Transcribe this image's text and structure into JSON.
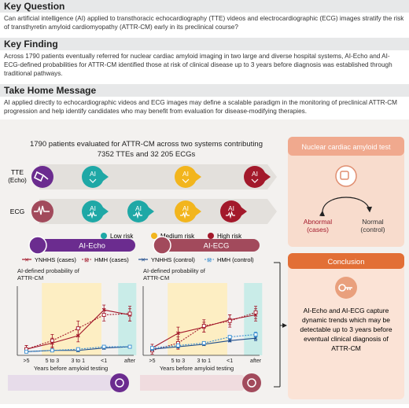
{
  "key_question": {
    "heading": "Key Question",
    "text": "Can artificial intelligence (AI) applied to transthoracic echocardiography (TTE) videos and electrocardiographic (ECG) images stratify the risk of transthyretin amyloid cardiomyopathy (ATTR-CM) early in its preclinical course?"
  },
  "key_finding": {
    "heading": "Key Finding",
    "text": "Across 1790 patients eventually referred for nuclear cardiac amyloid imaging in two large and diverse hospital systems, AI-Echo and AI-ECG-defined probabilities for ATTR-CM identified those at risk of clinical disease up to 3 years before diagnosis was established through traditional pathways."
  },
  "take_home": {
    "heading": "Take Home Message",
    "text": "AI applied directly to echocardiographic videos and ECG images may define a scalable paradigm in the monitoring of preclinical ATTR-CM progression and help identify candidates who may benefit from evaluation for disease-modifying therapies."
  },
  "diagram": {
    "cohort_line1": "1790 patients evaluated for ATTR-CM across two systems contributing",
    "cohort_line2": "7352 TTEs and 32 205 ECGs",
    "tte_label_1": "TTE",
    "tte_label_2": "(Echo)",
    "ecg_label": "ECG",
    "ai_label": "AI",
    "legend": {
      "low": "Low risk",
      "medium": "Medium risk",
      "high": "High risk"
    },
    "nuclear_title": "Nuclear cardiac amyloid test",
    "abnormal_1": "Abnormal",
    "abnormal_2": "(cases)",
    "normal_1": "Normal",
    "normal_2": "(control)",
    "conclusion_title": "Conclusion",
    "conclusion_lines": [
      "AI-Echo and AI-ECG capture",
      "dynamic trends which may be",
      "detectable up to 3 years before",
      "eventual clinical diagnosis of",
      "ATTR-CM"
    ]
  },
  "colors": {
    "low": "#1fa8a6",
    "medium": "#f2b51d",
    "high": "#a3192b",
    "echo": "#6b2c8f",
    "ecg": "#a24a5c",
    "salmon": "#f0a98e",
    "conclusion": "#e26f36",
    "highlight": "#fdeec3",
    "after_band": "#c9ece8"
  },
  "chart_data": [
    {
      "type": "line",
      "title": "AI-Echo",
      "ylabel": "AI-defined probability of ATTR-CM",
      "xlabel": "Years before amyloid testing",
      "categories": [
        ">5",
        "5 to 3",
        "3 to 1",
        "<1",
        "after"
      ],
      "ylim": [
        0,
        0.5
      ],
      "yticks": [
        0,
        0.1,
        0.2,
        0.3,
        0.4,
        0.5
      ],
      "legend": [
        "YNHHS (cases)",
        "HMH (cases)",
        "YNHHS (control)",
        "HMH (control)"
      ],
      "series": [
        {
          "name": "YNHHS (cases)",
          "values": [
            0.05,
            0.1,
            0.16,
            0.37,
            0.33
          ],
          "err": [
            0.03,
            0.04,
            0.05,
            0.04,
            0.05
          ]
        },
        {
          "name": "HMH (cases)",
          "values": [
            0.05,
            0.12,
            0.22,
            0.33,
            0.34
          ],
          "err": [
            0.03,
            0.05,
            0.06,
            0.05,
            0.06
          ]
        },
        {
          "name": "YNHHS (control)",
          "values": [
            0.03,
            0.04,
            0.04,
            0.06,
            0.07
          ],
          "err": [
            0.01,
            0.01,
            0.01,
            0.01,
            0.01
          ]
        },
        {
          "name": "HMH (control)",
          "values": [
            0.03,
            0.04,
            0.05,
            0.07,
            0.07
          ],
          "err": [
            0.01,
            0.01,
            0.01,
            0.01,
            0.01
          ]
        }
      ]
    },
    {
      "type": "line",
      "title": "AI-ECG",
      "ylabel": "AI-defined probability of ATTR-CM",
      "xlabel": "Years before amyloid testing",
      "categories": [
        ">5",
        "5 to 3",
        "3 to 1",
        "<1",
        "after"
      ],
      "ylim": [
        0,
        0.5
      ],
      "yticks": [
        0,
        0.1,
        0.2,
        0.3,
        0.4,
        0.5
      ],
      "series": [
        {
          "name": "YNHHS (cases)",
          "values": [
            0.06,
            0.18,
            0.23,
            0.29,
            0.33
          ],
          "err": [
            0.03,
            0.05,
            0.04,
            0.04,
            0.05
          ]
        },
        {
          "name": "HMH (cases)",
          "values": [
            0.04,
            0.1,
            0.24,
            0.28,
            0.35
          ],
          "err": [
            0.03,
            0.05,
            0.05,
            0.05,
            0.05
          ]
        },
        {
          "name": "YNHHS (control)",
          "values": [
            0.05,
            0.07,
            0.09,
            0.12,
            0.14
          ],
          "err": [
            0.01,
            0.01,
            0.01,
            0.01,
            0.02
          ]
        },
        {
          "name": "HMH (control)",
          "values": [
            0.06,
            0.08,
            0.1,
            0.15,
            0.17
          ],
          "err": [
            0.01,
            0.01,
            0.01,
            0.01,
            0.02
          ]
        }
      ]
    }
  ]
}
